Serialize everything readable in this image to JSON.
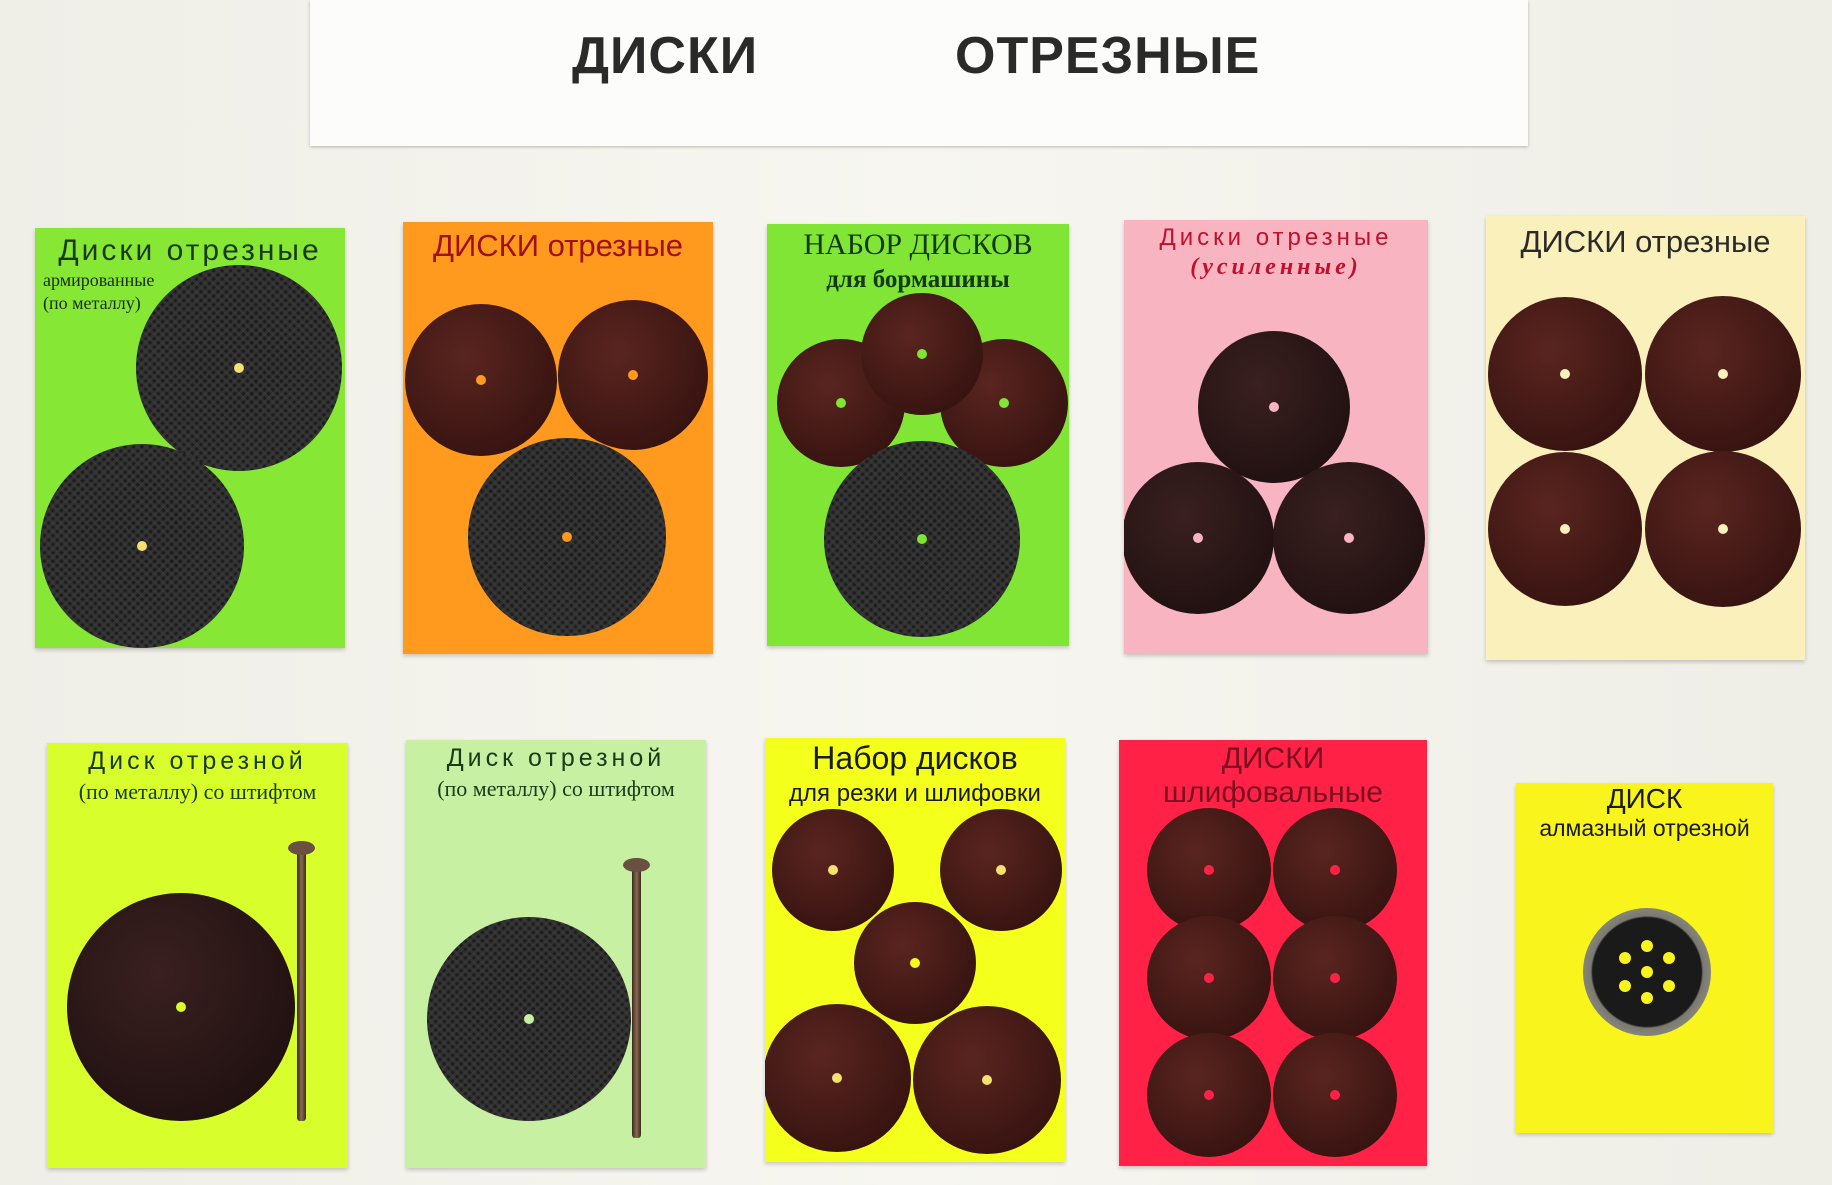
{
  "header": {
    "word1": "ДИСКИ",
    "word2": "ОТРЕЗНЫЕ"
  },
  "row1": [
    {
      "line1": "Диски отрезные",
      "line2": "армированные",
      "line3": "(по металлу)",
      "color": "#86e834"
    },
    {
      "line1": "ДИСКИ отрезные",
      "color": "#ff9a1e"
    },
    {
      "line1": "НАБОР ДИСКОВ",
      "line2": "для бормашины",
      "color": "#80e535"
    },
    {
      "line1": "Диски отрезные",
      "line2": "(усиленные)",
      "color": "#f9b4c2"
    },
    {
      "line1": "ДИСКИ отрезные",
      "color": "#faf0bc"
    }
  ],
  "row2": [
    {
      "line1": "Диск отрезной",
      "line2": "(по металлу) со штифтом",
      "color": "#d8ff2c"
    },
    {
      "line1": "Диск отрезной",
      "line2": "(по металлу) со штифтом",
      "color": "#c8f0a2"
    },
    {
      "line1": "Набор дисков",
      "line2": "для резки и шлифовки",
      "color": "#f4ff1c"
    },
    {
      "line1": "ДИСКИ",
      "line2": "шлифовальные",
      "color": "#ff2246"
    },
    {
      "line1": "ДИСК",
      "line2": "алмазный отрезной",
      "color": "#f8f41c"
    }
  ]
}
